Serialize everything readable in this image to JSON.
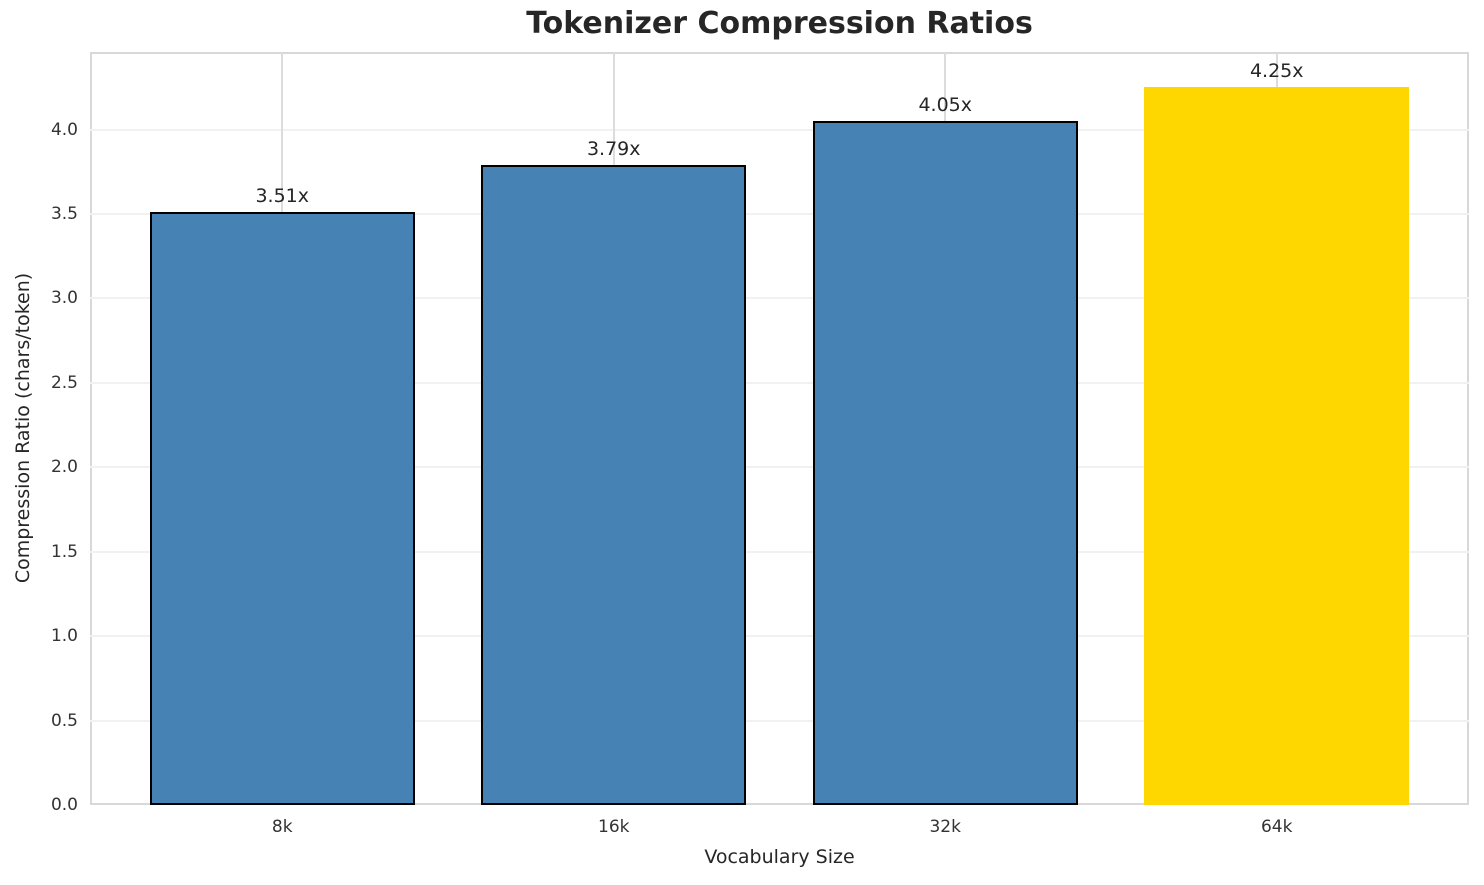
{
  "chart_data": {
    "type": "bar",
    "title": "Tokenizer Compression Ratios",
    "xlabel": "Vocabulary Size",
    "ylabel": "Compression Ratio (chars/token)",
    "categories": [
      "8k",
      "16k",
      "32k",
      "64k"
    ],
    "values": [
      3.51,
      3.79,
      4.05,
      4.25
    ],
    "bar_labels": [
      "3.51x",
      "3.79x",
      "4.05x",
      "4.25x"
    ],
    "bar_colors": [
      "#4682B4",
      "#4682B4",
      "#4682B4",
      "#FFD700"
    ],
    "bar_edge_colors": [
      "#000000",
      "#000000",
      "#000000",
      "none"
    ],
    "highlight_category": "64k",
    "ylim": [
      0,
      4.46
    ],
    "yticks": [
      0.0,
      0.5,
      1.0,
      1.5,
      2.0,
      2.5,
      3.0,
      3.5,
      4.0
    ],
    "ytick_labels": [
      "0.0",
      "0.5",
      "1.0",
      "1.5",
      "2.0",
      "2.5",
      "3.0",
      "3.5",
      "4.0"
    ],
    "grid": true,
    "grid_color_horizontal": "#f1f1f1",
    "grid_color_vertical": "#dcdcdc",
    "spine_color": "#d8d8d8",
    "text_color": "#262626",
    "legend_position": "none"
  }
}
